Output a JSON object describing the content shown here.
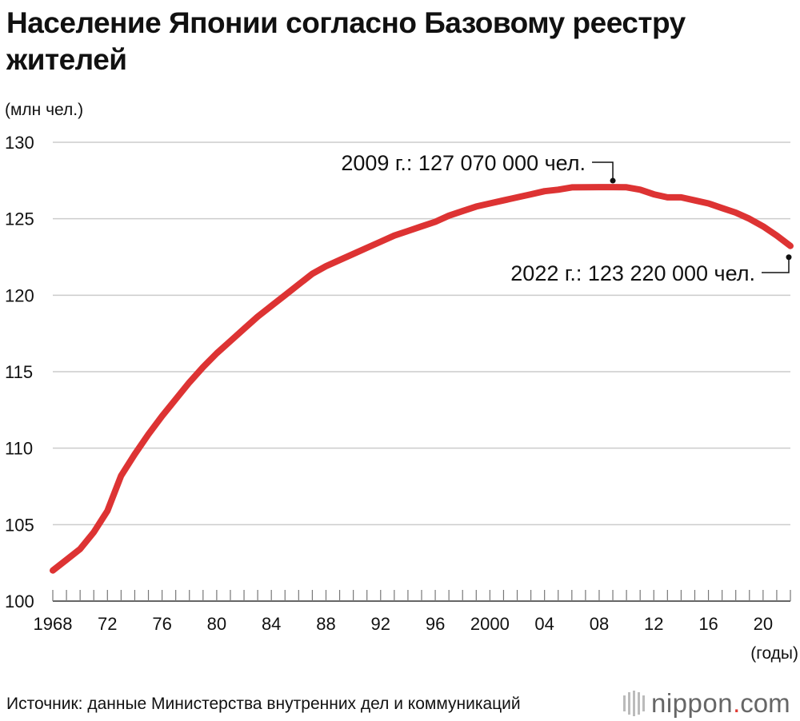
{
  "title": "Население Японии согласно Базовому реестру жителей",
  "source": "Источник: данные Министерства внутренних дел и коммуникаций",
  "brand": {
    "name": "nippon",
    "dot": ".",
    "tld": "com"
  },
  "colors": {
    "line": "#dd3333",
    "grid": "#cccccc",
    "axis": "#333333",
    "text": "#111111",
    "brand_dot": "#e03a33"
  },
  "chart_data": {
    "type": "line",
    "ylabel": "(млн чел.)",
    "xlabel": "(годы)",
    "ylim": [
      100,
      130
    ],
    "xlim": [
      1968,
      2022
    ],
    "yticks": [
      100,
      105,
      110,
      115,
      120,
      125,
      130
    ],
    "xtick_values": [
      1968,
      1972,
      1976,
      1980,
      1984,
      1988,
      1992,
      1996,
      2000,
      2004,
      2008,
      2012,
      2016,
      2020
    ],
    "xtick_labels": [
      "1968",
      "72",
      "76",
      "80",
      "84",
      "88",
      "92",
      "96",
      "2000",
      "04",
      "08",
      "12",
      "16",
      "20"
    ],
    "grid": "horizontal",
    "x": [
      1968,
      1969,
      1970,
      1971,
      1972,
      1973,
      1974,
      1975,
      1976,
      1977,
      1978,
      1979,
      1980,
      1981,
      1982,
      1983,
      1984,
      1985,
      1986,
      1987,
      1988,
      1989,
      1990,
      1991,
      1992,
      1993,
      1994,
      1995,
      1996,
      1997,
      1998,
      1999,
      2000,
      2001,
      2002,
      2003,
      2004,
      2005,
      2006,
      2007,
      2008,
      2009,
      2010,
      2011,
      2012,
      2013,
      2014,
      2015,
      2016,
      2017,
      2018,
      2019,
      2020,
      2021,
      2022
    ],
    "values": [
      102.0,
      102.7,
      103.4,
      104.5,
      105.9,
      108.2,
      109.6,
      110.9,
      112.1,
      113.2,
      114.3,
      115.3,
      116.2,
      117.0,
      117.8,
      118.6,
      119.3,
      120.0,
      120.7,
      121.4,
      121.9,
      122.3,
      122.7,
      123.1,
      123.5,
      123.9,
      124.2,
      124.5,
      124.8,
      125.2,
      125.5,
      125.8,
      126.0,
      126.2,
      126.4,
      126.6,
      126.8,
      126.9,
      127.05,
      127.06,
      127.07,
      127.07,
      127.06,
      126.9,
      126.6,
      126.4,
      126.4,
      126.2,
      126.0,
      125.7,
      125.4,
      125.0,
      124.5,
      123.9,
      123.22
    ],
    "annotations": [
      {
        "text": "2009 г.: 127 070 000 чел.",
        "x": 2009,
        "y": 127.07
      },
      {
        "text": "2022 г.: 123 220 000 чел.",
        "x": 2022,
        "y": 123.22
      }
    ]
  }
}
